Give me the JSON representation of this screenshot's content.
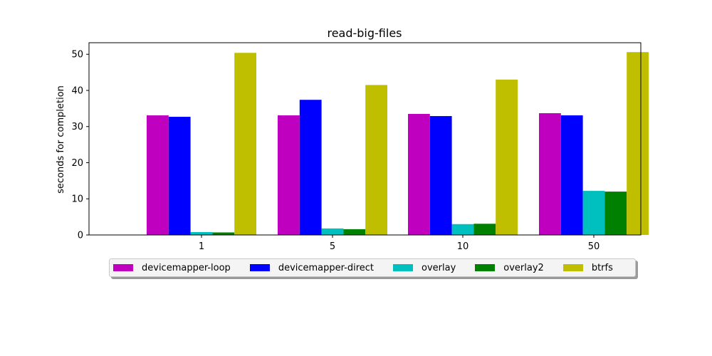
{
  "chart_data": {
    "type": "bar",
    "title": "read-big-files",
    "xlabel": "",
    "ylabel": "seconds for completion",
    "categories": [
      "1",
      "5",
      "10",
      "50"
    ],
    "ylim": [
      0,
      53.2
    ],
    "yticks": [
      0,
      10,
      20,
      30,
      40,
      50
    ],
    "grid": false,
    "legend_position": "bottom-center, below plot",
    "series": [
      {
        "name": "devicemapper-loop",
        "color": "#bf00bf",
        "values": [
          33.1,
          33.1,
          33.5,
          33.7
        ]
      },
      {
        "name": "devicemapper-direct",
        "color": "#0000ff",
        "values": [
          32.7,
          37.4,
          32.9,
          33.1
        ]
      },
      {
        "name": "overlay",
        "color": "#00bfbf",
        "values": [
          0.8,
          1.8,
          3.0,
          12.2
        ]
      },
      {
        "name": "overlay2",
        "color": "#008000",
        "values": [
          0.7,
          1.6,
          3.1,
          12.0
        ]
      },
      {
        "name": "btrfs",
        "color": "#bfbf00",
        "values": [
          50.4,
          41.5,
          43.0,
          50.6
        ]
      }
    ]
  }
}
